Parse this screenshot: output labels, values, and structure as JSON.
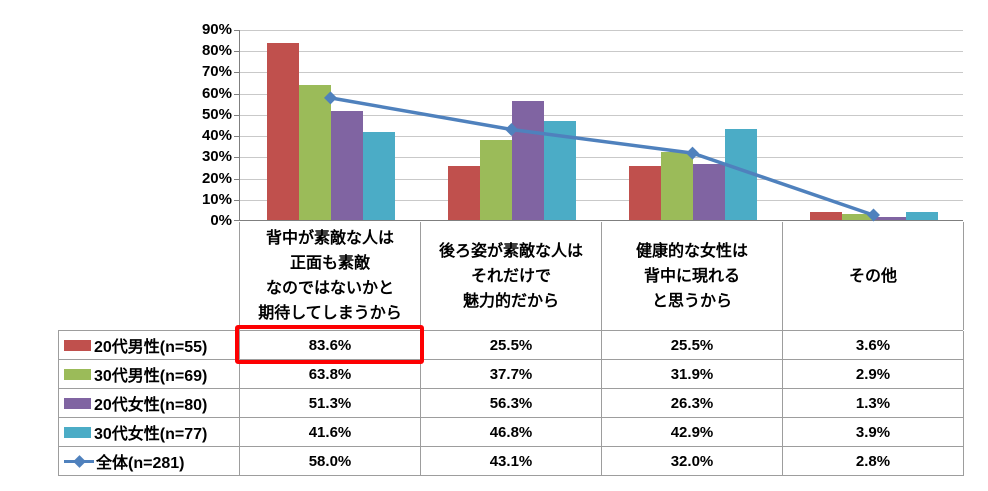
{
  "chart_data": {
    "type": "bar",
    "title": "",
    "xlabel": "",
    "ylabel": "",
    "ylim": [
      0,
      90
    ],
    "grid": true,
    "legend_position": "table-left-column",
    "y_ticks": [
      "90%",
      "80%",
      "70%",
      "60%",
      "50%",
      "40%",
      "30%",
      "20%",
      "10%",
      "0%"
    ],
    "categories": [
      "背中が素敵な人は\n正面も素敵\nなのではないかと\n期待してしまうから",
      "後ろ姿が素敵な人は\nそれだけで\n魅力的だから",
      "健康的な女性は\n背中に現れる\nと思うから",
      "その他"
    ],
    "series": [
      {
        "name": "20代男性(n=55)",
        "type": "bar",
        "color": "#C0504D",
        "values": [
          83.6,
          25.5,
          25.5,
          3.6
        ]
      },
      {
        "name": "30代男性(n=69)",
        "type": "bar",
        "color": "#9BBB59",
        "values": [
          63.8,
          37.7,
          31.9,
          2.9
        ]
      },
      {
        "name": "20代女性(n=80)",
        "type": "bar",
        "color": "#8064A2",
        "values": [
          51.3,
          56.3,
          26.3,
          1.3
        ]
      },
      {
        "name": "30代女性(n=77)",
        "type": "bar",
        "color": "#4BACC6",
        "values": [
          41.6,
          46.8,
          42.9,
          3.9
        ]
      },
      {
        "name": "全体(n=281)",
        "type": "line",
        "color": "#4F81BD",
        "values": [
          58.0,
          43.1,
          32.0,
          2.8
        ]
      }
    ]
  },
  "table": {
    "rows": [
      {
        "label": "20代男性(n=55)",
        "cells": [
          "83.6%",
          "25.5%",
          "25.5%",
          "3.6%"
        ]
      },
      {
        "label": "30代男性(n=69)",
        "cells": [
          "63.8%",
          "37.7%",
          "31.9%",
          "2.9%"
        ]
      },
      {
        "label": "20代女性(n=80)",
        "cells": [
          "51.3%",
          "56.3%",
          "26.3%",
          "1.3%"
        ]
      },
      {
        "label": "30代女性(n=77)",
        "cells": [
          "41.6%",
          "46.8%",
          "42.9%",
          "3.9%"
        ]
      },
      {
        "label": "全体(n=281)",
        "cells": [
          "58.0%",
          "43.1%",
          "32.0%",
          "2.8%"
        ]
      }
    ]
  },
  "highlight": {
    "cell_value": "83.6%",
    "row": 0,
    "column": 0,
    "color": "#FD0002"
  }
}
